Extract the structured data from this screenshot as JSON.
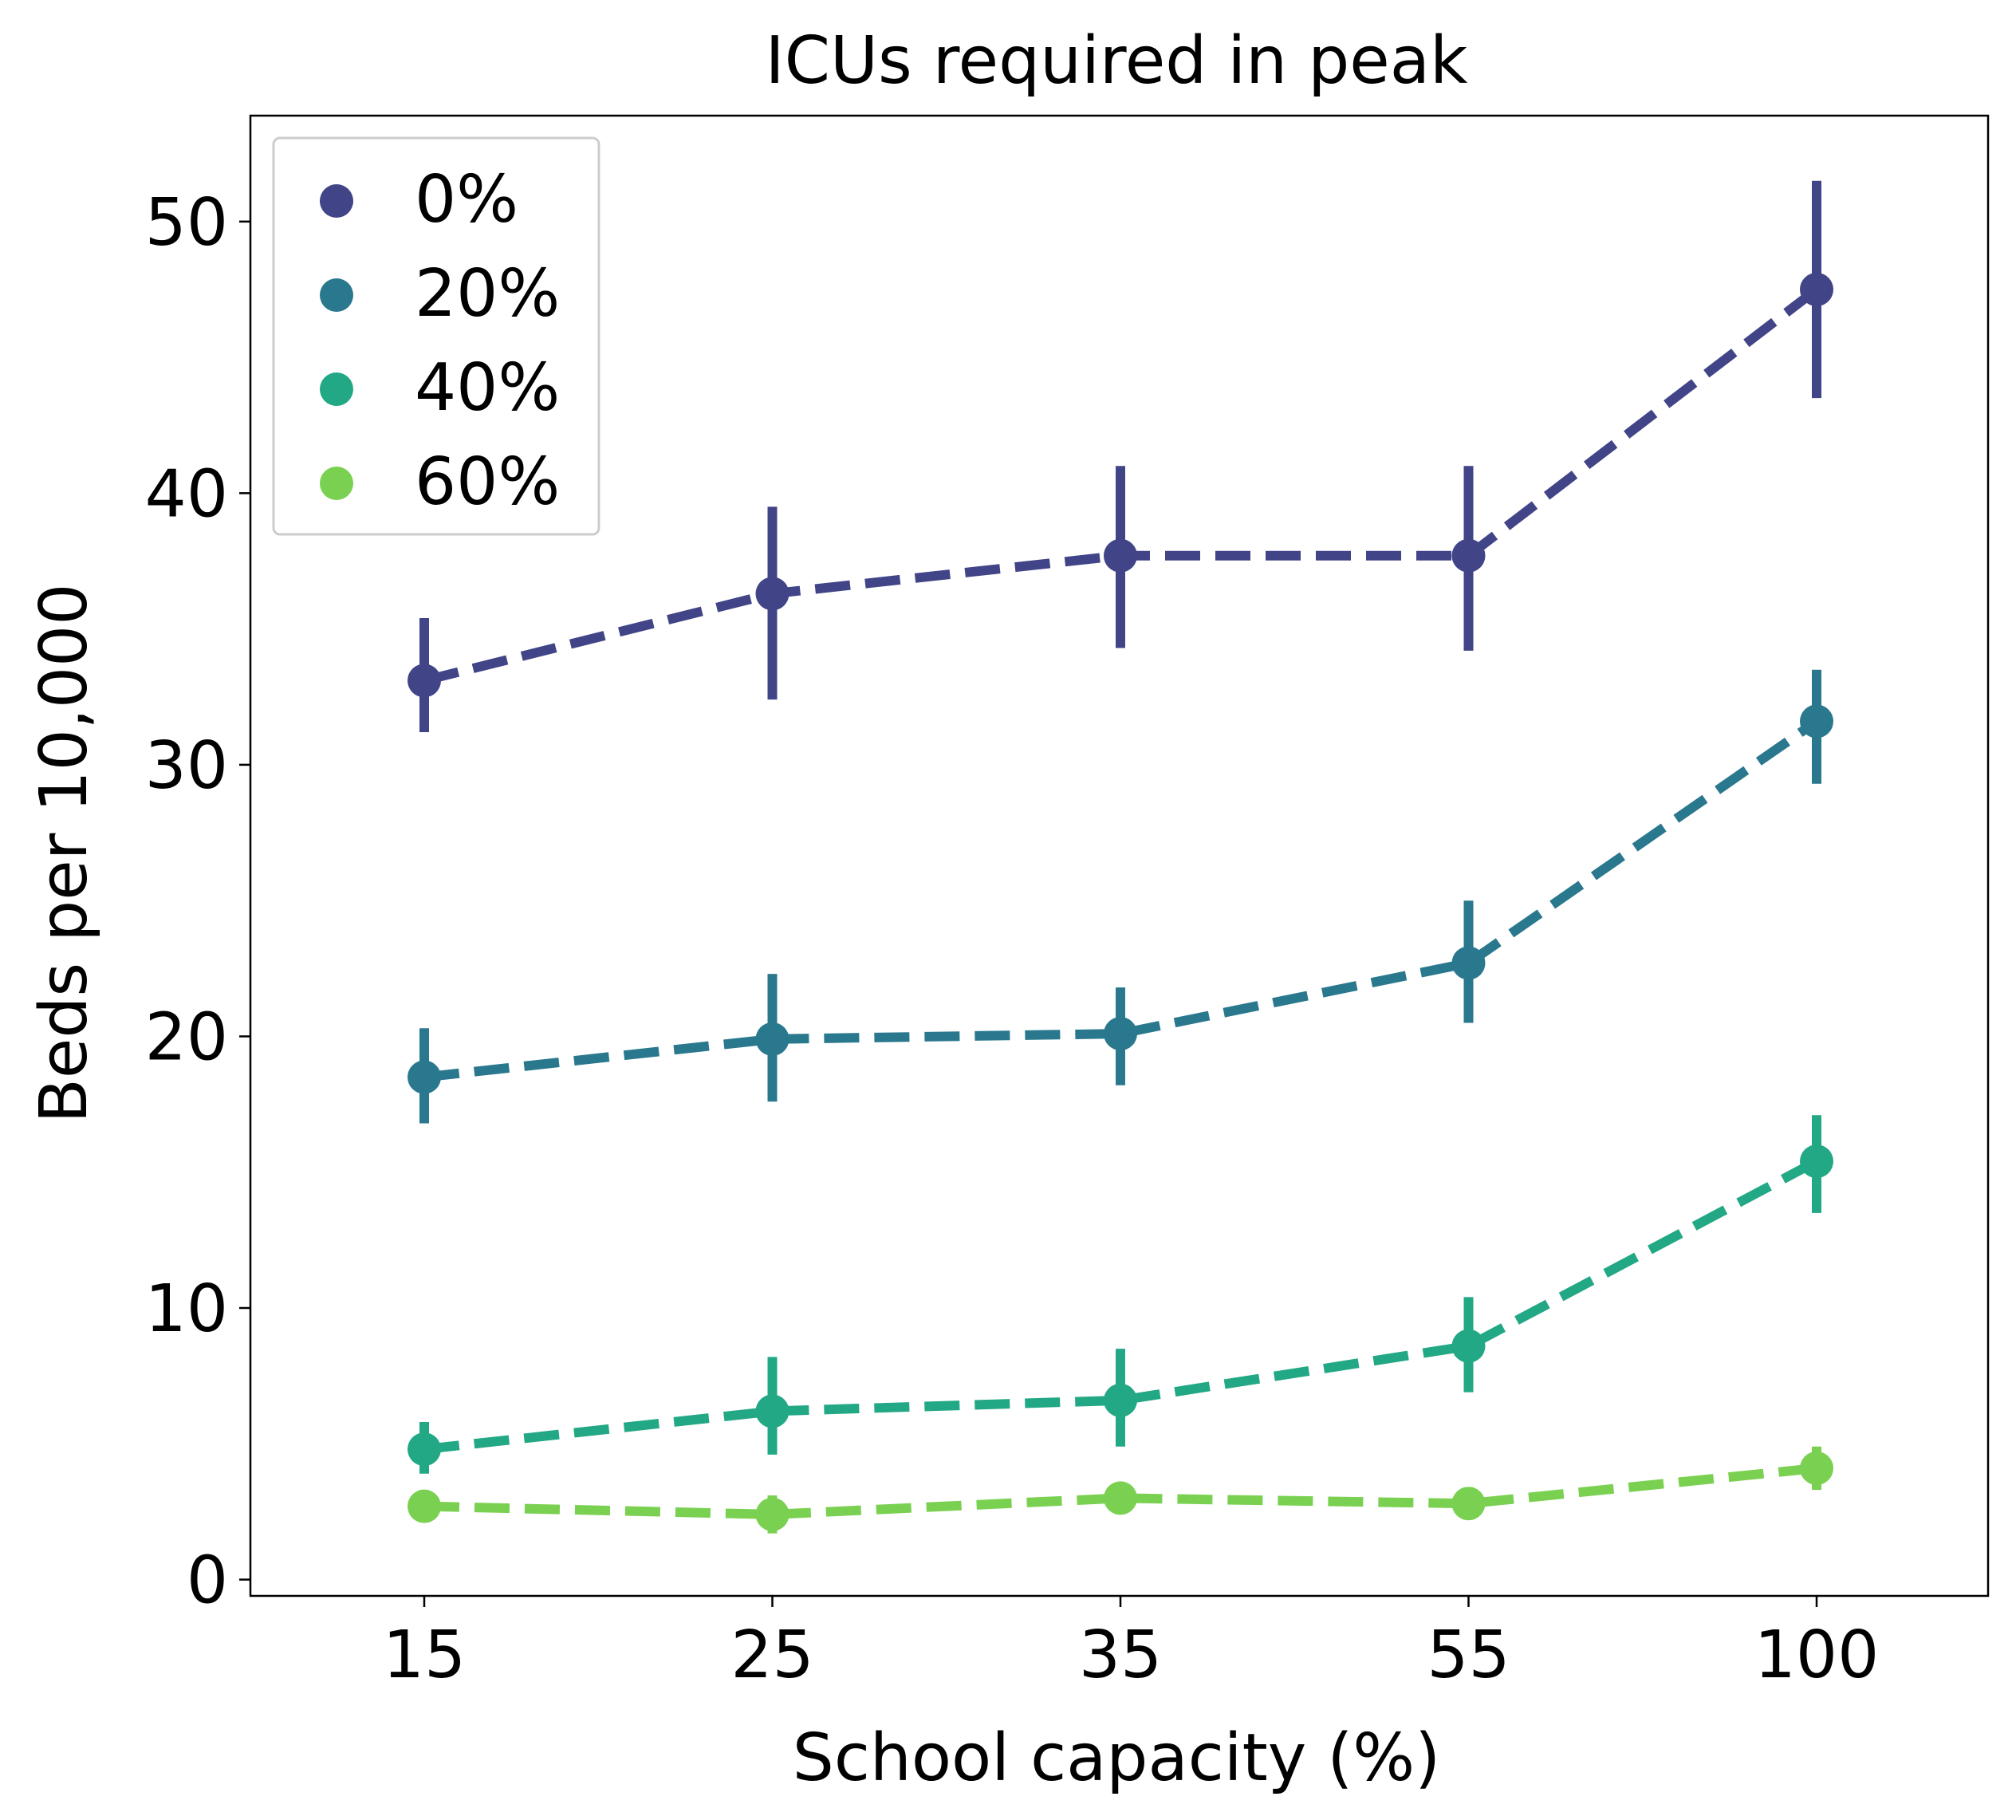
{
  "chart_data": {
    "type": "line",
    "title": "ICUs required in peak",
    "xlabel": "School capacity (%)",
    "ylabel": "Beds per 10,000",
    "categories": [
      "15",
      "25",
      "35",
      "55",
      "100"
    ],
    "yticks": [
      "0",
      "10",
      "20",
      "30",
      "40",
      "50"
    ],
    "ylim": [
      -0.6,
      53.9
    ],
    "legend_position": "top-left",
    "line_style": "dashed",
    "grid": false,
    "series": [
      {
        "name": "0%",
        "color": "#414487",
        "values": [
          33.1,
          36.3,
          37.7,
          37.7,
          47.5
        ],
        "error_low": [
          31.2,
          32.4,
          34.3,
          34.2,
          43.5
        ],
        "error_high": [
          35.4,
          39.5,
          41.0,
          41.0,
          51.5
        ]
      },
      {
        "name": "20%",
        "color": "#2a788e",
        "values": [
          18.5,
          19.9,
          20.1,
          22.7,
          31.6
        ],
        "error_low": [
          16.8,
          17.6,
          18.2,
          20.5,
          29.3
        ],
        "error_high": [
          20.3,
          22.3,
          21.8,
          25.0,
          33.5
        ]
      },
      {
        "name": "40%",
        "color": "#22a884",
        "values": [
          4.8,
          6.2,
          6.6,
          8.6,
          15.4
        ],
        "error_low": [
          3.9,
          4.6,
          4.9,
          6.9,
          13.5
        ],
        "error_high": [
          5.8,
          8.2,
          8.5,
          10.4,
          17.1
        ]
      },
      {
        "name": "60%",
        "color": "#7ad151",
        "values": [
          2.7,
          2.4,
          3.0,
          2.8,
          4.1
        ],
        "error_low": [
          2.1,
          1.7,
          2.6,
          2.2,
          3.3
        ],
        "error_high": [
          3.3,
          3.1,
          3.4,
          3.4,
          4.9
        ]
      }
    ]
  }
}
